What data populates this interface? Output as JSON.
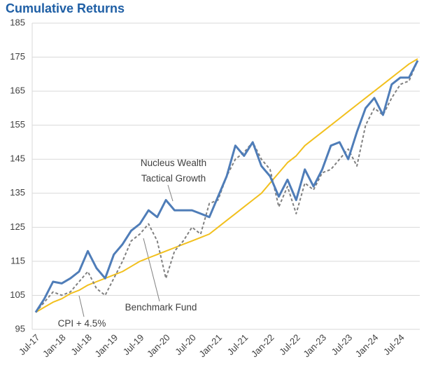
{
  "chart_data": {
    "type": "line",
    "title": "Cumulative Returns",
    "categories": [
      "Jul-17",
      null,
      null,
      "Jan-18",
      null,
      null,
      "Jul-18",
      null,
      null,
      "Jan-19",
      null,
      null,
      "Jul-19",
      null,
      null,
      "Jan-20",
      null,
      null,
      "Jul-20",
      null,
      null,
      "Jan-21",
      null,
      null,
      "Jul-21",
      null,
      null,
      "Jan-22",
      null,
      null,
      "Jul-22",
      null,
      null,
      "Jan-23",
      null,
      null,
      "Jul-23",
      null,
      null,
      "Jan-24",
      null,
      null,
      "Jul-24",
      null,
      null
    ],
    "series": [
      {
        "name": "Nucleus Wealth Tactical Growth",
        "color": "#4f7db8",
        "values": [
          100,
          104,
          109,
          108.5,
          110,
          112,
          118,
          113,
          110,
          117,
          120,
          124,
          126,
          130,
          128,
          133,
          130,
          130,
          130,
          129,
          128,
          134,
          140,
          149,
          146,
          150,
          143,
          140,
          134,
          139,
          133,
          142,
          137,
          142,
          149,
          150,
          145,
          153,
          160,
          163,
          158,
          167,
          169,
          169,
          174
        ]
      },
      {
        "name": "Benchmark Fund",
        "color": "#808080",
        "values": [
          100,
          103,
          106,
          105,
          106,
          109,
          112,
          107,
          105,
          110,
          115,
          121,
          123,
          126,
          121,
          110,
          118,
          121,
          125,
          123,
          132,
          133,
          140,
          145,
          147,
          150,
          145,
          142,
          131,
          137,
          129,
          138,
          136,
          141,
          142,
          145,
          148,
          143,
          155,
          160,
          158,
          163,
          167,
          168,
          174
        ]
      },
      {
        "name": "CPI + 4.5%",
        "color": "#f2c01e",
        "values": [
          100,
          101.5,
          103,
          104,
          105.5,
          106.5,
          108,
          109,
          110,
          111,
          112,
          113.5,
          115,
          116,
          117,
          118,
          119,
          120,
          121,
          122,
          123,
          125,
          127,
          129,
          131,
          133,
          135,
          138,
          141,
          144,
          146,
          149,
          151,
          153,
          155,
          157,
          159,
          161,
          163,
          165,
          167,
          169,
          171,
          173,
          174.5
        ]
      }
    ],
    "ylim": [
      95,
      185
    ],
    "yticks": [
      95,
      105,
      115,
      125,
      135,
      145,
      155,
      165,
      175,
      185
    ],
    "grid": true
  }
}
